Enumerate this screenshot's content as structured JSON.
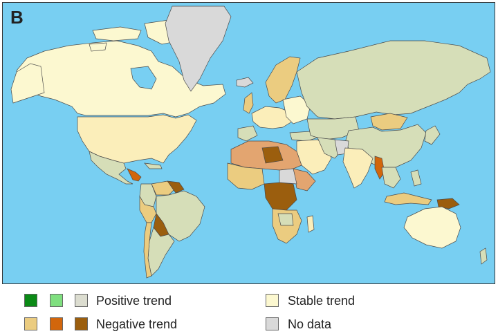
{
  "panel_label": "B",
  "colors": {
    "ocean": "#78cff2",
    "border": "#4a4a4a",
    "positive_strong": "#0b8a16",
    "positive_medium": "#7fdf7f",
    "positive_weak": "#dcddd0",
    "stable": "#fcf8d0",
    "negative_weak": "#ebcc80",
    "negative_medium": "#d2660c",
    "negative_strong": "#9b5e0e",
    "no_data": "#d9d9d9",
    "mid_orange": "#e3a570",
    "sage": "#d6deb8",
    "light_tan": "#fbeeba"
  },
  "legend": {
    "positive_label": "Positive trend",
    "negative_label": "Negative trend",
    "stable_label": "Stable trend",
    "nodata_label": "No data"
  }
}
